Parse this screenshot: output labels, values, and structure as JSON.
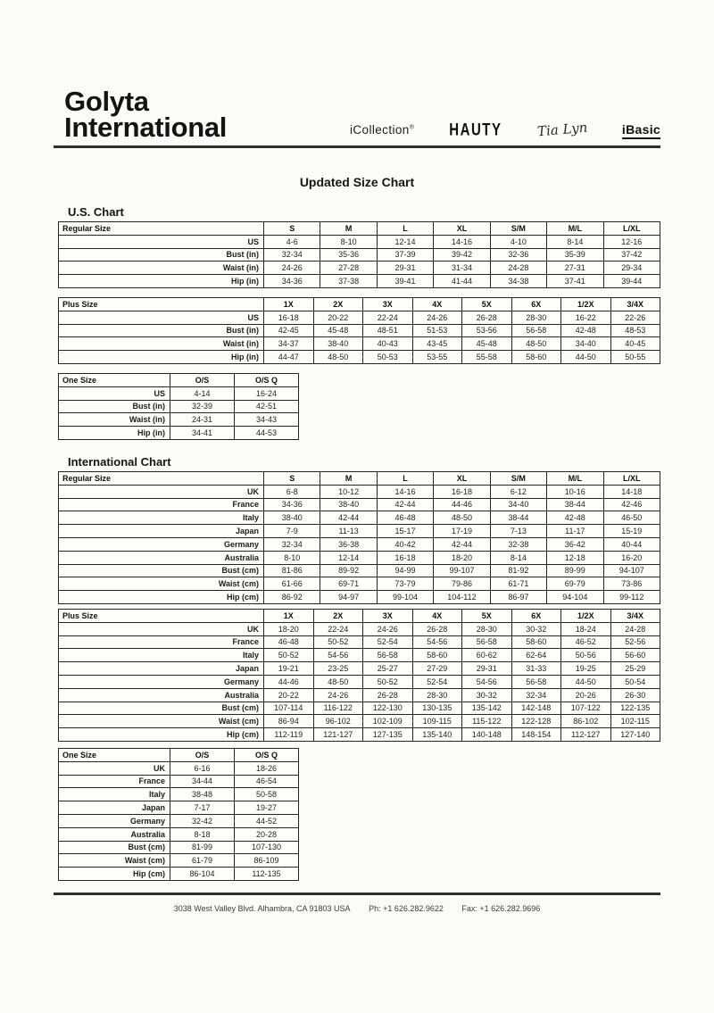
{
  "header": {
    "logo_line1": "Golyta",
    "logo_line2": "International",
    "brands": {
      "icollection": "iCollection",
      "icollection_mark": "®",
      "hauty": "HAUTY",
      "tialyn": "Tia Lyn",
      "ibasic": "iBasic"
    }
  },
  "title": "Updated Size Chart",
  "us_chart": {
    "heading": "U.S. Chart",
    "regular": {
      "corner_label": "Regular Size",
      "columns": [
        "S",
        "M",
        "L",
        "XL",
        "S/M",
        "M/L",
        "L/XL"
      ],
      "rows": [
        {
          "label": "US",
          "values": [
            "4-6",
            "8-10",
            "12-14",
            "14-16",
            "4-10",
            "8-14",
            "12-16"
          ]
        },
        {
          "label": "Bust (in)",
          "values": [
            "32-34",
            "35-36",
            "37-39",
            "39-42",
            "32-36",
            "35-39",
            "37-42"
          ]
        },
        {
          "label": "Waist (in)",
          "values": [
            "24-26",
            "27-28",
            "29-31",
            "31-34",
            "24-28",
            "27-31",
            "29-34"
          ]
        },
        {
          "label": "Hip (in)",
          "values": [
            "34-36",
            "37-38",
            "39-41",
            "41-44",
            "34-38",
            "37-41",
            "39-44"
          ]
        }
      ]
    },
    "plus": {
      "corner_label": "Plus Size",
      "columns": [
        "1X",
        "2X",
        "3X",
        "4X",
        "5X",
        "6X",
        "1/2X",
        "3/4X"
      ],
      "rows": [
        {
          "label": "US",
          "values": [
            "16-18",
            "20-22",
            "22-24",
            "24-26",
            "26-28",
            "28-30",
            "16-22",
            "22-26"
          ]
        },
        {
          "label": "Bust (in)",
          "values": [
            "42-45",
            "45-48",
            "48-51",
            "51-53",
            "53-56",
            "56-58",
            "42-48",
            "48-53"
          ]
        },
        {
          "label": "Waist (in)",
          "values": [
            "34-37",
            "38-40",
            "40-43",
            "43-45",
            "45-48",
            "48-50",
            "34-40",
            "40-45"
          ]
        },
        {
          "label": "Hip (in)",
          "values": [
            "44-47",
            "48-50",
            "50-53",
            "53-55",
            "55-58",
            "58-60",
            "44-50",
            "50-55"
          ]
        }
      ]
    },
    "onesize": {
      "corner_label": "One Size",
      "columns": [
        "O/S",
        "O/S Q"
      ],
      "rows": [
        {
          "label": "US",
          "values": [
            "4-14",
            "16-24"
          ]
        },
        {
          "label": "Bust (in)",
          "values": [
            "32-39",
            "42-51"
          ]
        },
        {
          "label": "Waist (in)",
          "values": [
            "24-31",
            "34-43"
          ]
        },
        {
          "label": "Hip (in)",
          "values": [
            "34-41",
            "44-53"
          ]
        }
      ]
    }
  },
  "intl_chart": {
    "heading": "International Chart",
    "regular": {
      "corner_label": "Regular Size",
      "columns": [
        "S",
        "M",
        "L",
        "XL",
        "S/M",
        "M/L",
        "L/XL"
      ],
      "rows": [
        {
          "label": "UK",
          "values": [
            "6-8",
            "10-12",
            "14-16",
            "16-18",
            "6-12",
            "10-16",
            "14-18"
          ]
        },
        {
          "label": "France",
          "values": [
            "34-36",
            "38-40",
            "42-44",
            "44-46",
            "34-40",
            "38-44",
            "42-46"
          ]
        },
        {
          "label": "Italy",
          "values": [
            "38-40",
            "42-44",
            "46-48",
            "48-50",
            "38-44",
            "42-48",
            "46-50"
          ]
        },
        {
          "label": "Japan",
          "values": [
            "7-9",
            "11-13",
            "15-17",
            "17-19",
            "7-13",
            "11-17",
            "15-19"
          ]
        },
        {
          "label": "Germany",
          "values": [
            "32-34",
            "36-38",
            "40-42",
            "42-44",
            "32-38",
            "36-42",
            "40-44"
          ]
        },
        {
          "label": "Australia",
          "values": [
            "8-10",
            "12-14",
            "16-18",
            "18-20",
            "8-14",
            "12-18",
            "16-20"
          ]
        },
        {
          "label": "Bust (cm)",
          "values": [
            "81-86",
            "89-92",
            "94-99",
            "99-107",
            "81-92",
            "89-99",
            "94-107"
          ]
        },
        {
          "label": "Waist (cm)",
          "values": [
            "61-66",
            "69-71",
            "73-79",
            "79-86",
            "61-71",
            "69-79",
            "73-86"
          ]
        },
        {
          "label": "Hip (cm)",
          "values": [
            "86-92",
            "94-97",
            "99-104",
            "104-112",
            "86-97",
            "94-104",
            "99-112"
          ]
        }
      ]
    },
    "plus": {
      "corner_label": "Plus Size",
      "columns": [
        "1X",
        "2X",
        "3X",
        "4X",
        "5X",
        "6X",
        "1/2X",
        "3/4X"
      ],
      "rows": [
        {
          "label": "UK",
          "values": [
            "18-20",
            "22-24",
            "24-26",
            "26-28",
            "28-30",
            "30-32",
            "18-24",
            "24-28"
          ]
        },
        {
          "label": "France",
          "values": [
            "46-48",
            "50-52",
            "52-54",
            "54-56",
            "56-58",
            "58-60",
            "46-52",
            "52-56"
          ]
        },
        {
          "label": "Italy",
          "values": [
            "50-52",
            "54-56",
            "56-58",
            "58-60",
            "60-62",
            "62-64",
            "50-56",
            "56-60"
          ]
        },
        {
          "label": "Japan",
          "values": [
            "19-21",
            "23-25",
            "25-27",
            "27-29",
            "29-31",
            "31-33",
            "19-25",
            "25-29"
          ]
        },
        {
          "label": "Germany",
          "values": [
            "44-46",
            "48-50",
            "50-52",
            "52-54",
            "54-56",
            "56-58",
            "44-50",
            "50-54"
          ]
        },
        {
          "label": "Australia",
          "values": [
            "20-22",
            "24-26",
            "26-28",
            "28-30",
            "30-32",
            "32-34",
            "20-26",
            "26-30"
          ]
        },
        {
          "label": "Bust (cm)",
          "values": [
            "107-114",
            "116-122",
            "122-130",
            "130-135",
            "135-142",
            "142-148",
            "107-122",
            "122-135"
          ]
        },
        {
          "label": "Waist (cm)",
          "values": [
            "86-94",
            "96-102",
            "102-109",
            "109-115",
            "115-122",
            "122-128",
            "86-102",
            "102-115"
          ]
        },
        {
          "label": "Hip (cm)",
          "values": [
            "112-119",
            "121-127",
            "127-135",
            "135-140",
            "140-148",
            "148-154",
            "112-127",
            "127-140"
          ]
        }
      ]
    },
    "onesize": {
      "corner_label": "One Size",
      "columns": [
        "O/S",
        "O/S Q"
      ],
      "rows": [
        {
          "label": "UK",
          "values": [
            "6-16",
            "18-26"
          ]
        },
        {
          "label": "France",
          "values": [
            "34-44",
            "46-54"
          ]
        },
        {
          "label": "Italy",
          "values": [
            "38-48",
            "50-58"
          ]
        },
        {
          "label": "Japan",
          "values": [
            "7-17",
            "19-27"
          ]
        },
        {
          "label": "Germany",
          "values": [
            "32-42",
            "44-52"
          ]
        },
        {
          "label": "Australia",
          "values": [
            "8-18",
            "20-28"
          ]
        },
        {
          "label": "Bust (cm)",
          "values": [
            "81-99",
            "107-130"
          ]
        },
        {
          "label": "Waist (cm)",
          "values": [
            "61-79",
            "86-109"
          ]
        },
        {
          "label": "Hip (cm)",
          "values": [
            "86-104",
            "112-135"
          ]
        }
      ]
    }
  },
  "footer": {
    "address": "3038 West Valley Blvd. Alhambra, CA 91803 USA",
    "phone": "Ph: +1 626.282.9622",
    "fax": "Fax: +1 626.282.9696"
  }
}
